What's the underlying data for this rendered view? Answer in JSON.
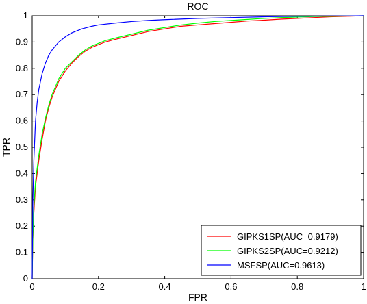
{
  "chart_data": {
    "type": "line",
    "title": "ROC",
    "xlabel": "FPR",
    "ylabel": "TPR",
    "xlim": [
      0,
      1
    ],
    "ylim": [
      0,
      1
    ],
    "xticks": [
      "0",
      "0.2",
      "0.4",
      "0.6",
      "0.8",
      "1"
    ],
    "yticks": [
      "0",
      "0.1",
      "0.2",
      "0.3",
      "0.4",
      "0.5",
      "0.6",
      "0.7",
      "0.8",
      "0.9",
      "1"
    ],
    "grid": false,
    "legend_position": "bottom-right",
    "series": [
      {
        "name": "GIPKS1SP(AUC=0.9179)",
        "color": "#ff0000",
        "x": [
          0,
          0.002,
          0.005,
          0.01,
          0.02,
          0.03,
          0.04,
          0.05,
          0.06,
          0.07,
          0.08,
          0.1,
          0.12,
          0.14,
          0.16,
          0.18,
          0.2,
          0.22,
          0.25,
          0.3,
          0.35,
          0.4,
          0.45,
          0.5,
          0.55,
          0.6,
          0.65,
          0.7,
          0.75,
          0.8,
          0.85,
          0.9,
          0.95,
          1
        ],
        "y": [
          0,
          0.15,
          0.25,
          0.35,
          0.45,
          0.53,
          0.6,
          0.65,
          0.69,
          0.72,
          0.75,
          0.79,
          0.82,
          0.845,
          0.865,
          0.88,
          0.89,
          0.9,
          0.91,
          0.925,
          0.94,
          0.95,
          0.96,
          0.965,
          0.97,
          0.975,
          0.98,
          0.983,
          0.987,
          0.99,
          0.993,
          0.996,
          0.998,
          1
        ]
      },
      {
        "name": "GIPKS2SP(AUC=0.9212)",
        "color": "#00ff00",
        "x": [
          0,
          0.002,
          0.005,
          0.01,
          0.02,
          0.03,
          0.04,
          0.05,
          0.06,
          0.07,
          0.08,
          0.1,
          0.12,
          0.14,
          0.16,
          0.18,
          0.2,
          0.22,
          0.25,
          0.3,
          0.35,
          0.4,
          0.45,
          0.5,
          0.55,
          0.6,
          0.65,
          0.7,
          0.75,
          0.8,
          0.85,
          0.9,
          0.95,
          1
        ],
        "y": [
          0,
          0.16,
          0.27,
          0.37,
          0.47,
          0.55,
          0.61,
          0.66,
          0.7,
          0.73,
          0.76,
          0.8,
          0.825,
          0.85,
          0.87,
          0.885,
          0.895,
          0.905,
          0.915,
          0.93,
          0.945,
          0.955,
          0.965,
          0.972,
          0.978,
          0.982,
          0.986,
          0.99,
          0.993,
          0.995,
          0.997,
          0.998,
          0.999,
          1
        ]
      },
      {
        "name": "MSFSP(AUC=0.9613)",
        "color": "#0000ff",
        "x": [
          0,
          0.002,
          0.005,
          0.01,
          0.015,
          0.02,
          0.03,
          0.04,
          0.05,
          0.06,
          0.08,
          0.1,
          0.12,
          0.15,
          0.18,
          0.2,
          0.25,
          0.3,
          0.35,
          0.4,
          0.5,
          0.6,
          0.7,
          0.8,
          0.9,
          1
        ],
        "y": [
          0,
          0.3,
          0.45,
          0.6,
          0.67,
          0.72,
          0.78,
          0.82,
          0.85,
          0.87,
          0.9,
          0.92,
          0.935,
          0.95,
          0.96,
          0.965,
          0.972,
          0.978,
          0.982,
          0.985,
          0.99,
          0.993,
          0.996,
          0.998,
          0.999,
          1
        ]
      }
    ]
  }
}
